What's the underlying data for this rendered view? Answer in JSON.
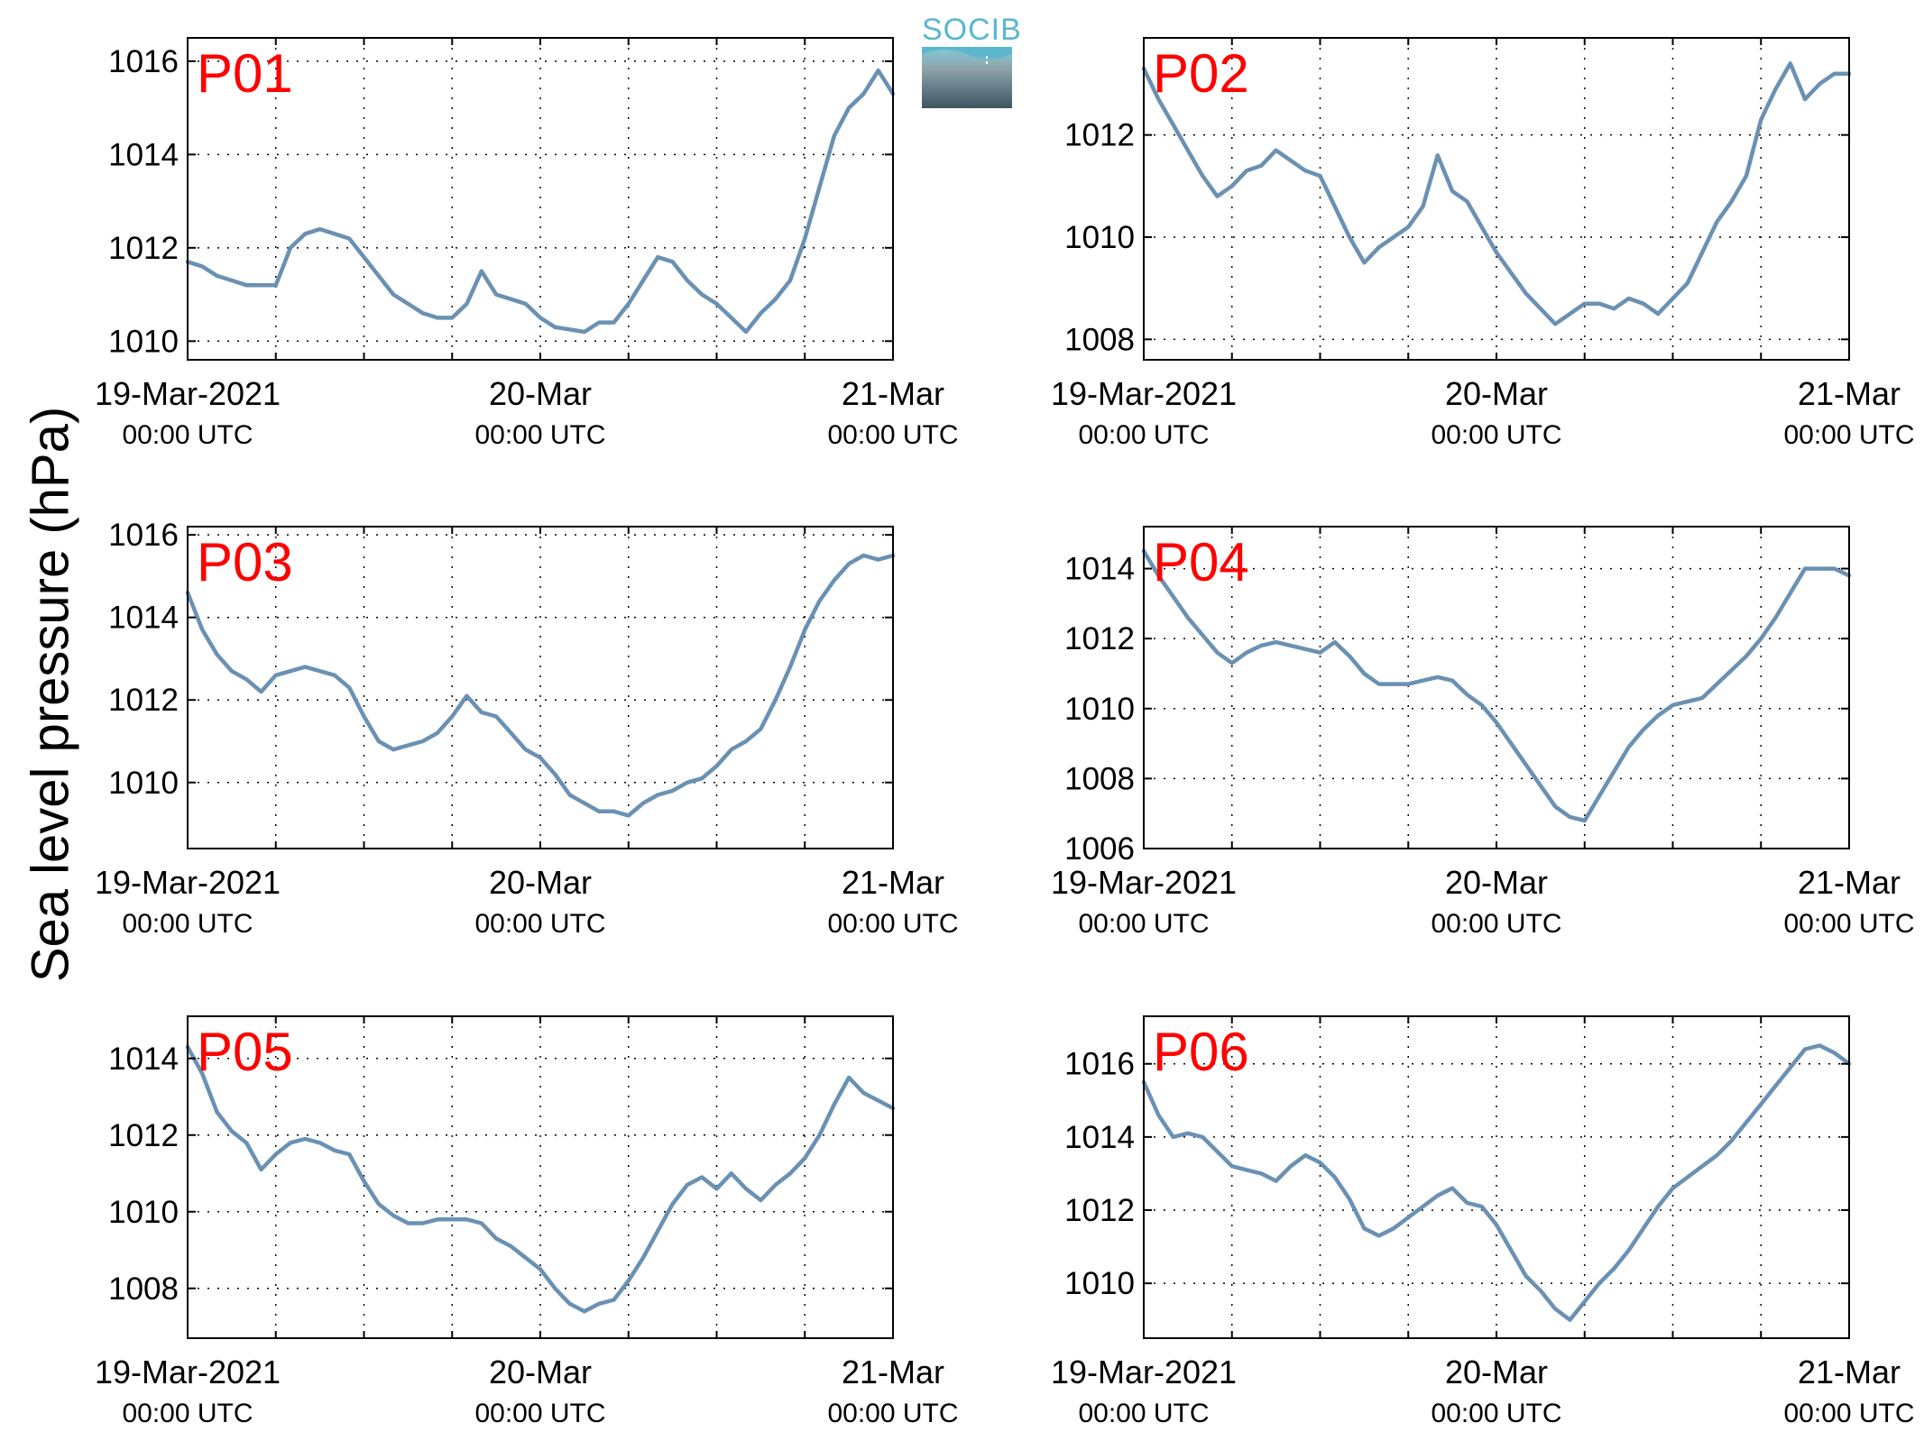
{
  "figure": {
    "ylabel": "Sea level pressure (hPa)",
    "logo_text": "SOCIB",
    "line_color": "#6a91b3",
    "label_color": "#ff0000"
  },
  "chart_data": [
    {
      "type": "line",
      "label": "P01",
      "x_ticks": [
        {
          "hour": 0,
          "lines": [
            "19-Mar-2021",
            "00:00 UTC"
          ]
        },
        {
          "hour": 24,
          "lines": [
            "20-Mar",
            "00:00 UTC"
          ]
        },
        {
          "hour": 48,
          "lines": [
            "21-Mar",
            "00:00 UTC"
          ]
        }
      ],
      "xlim": [
        0,
        48
      ],
      "ylim": [
        1009.6,
        1016.5
      ],
      "yticks": [
        1010,
        1012,
        1014,
        1016
      ],
      "grid": true,
      "series": [
        {
          "x": [
            0,
            1,
            2,
            3,
            4,
            5,
            6,
            7,
            8,
            9,
            10,
            11,
            12,
            13,
            14,
            15,
            16,
            17,
            18,
            19,
            20,
            21,
            22,
            23,
            24,
            25,
            26,
            27,
            28,
            29,
            30,
            31,
            32,
            33,
            34,
            35,
            36,
            37,
            38,
            39,
            40,
            41,
            42,
            43,
            44,
            45,
            46,
            47,
            48
          ],
          "y": [
            1011.7,
            1011.6,
            1011.4,
            1011.3,
            1011.2,
            1011.2,
            1011.2,
            1012.0,
            1012.3,
            1012.4,
            1012.3,
            1012.2,
            1011.8,
            1011.4,
            1011.0,
            1010.8,
            1010.6,
            1010.5,
            1010.5,
            1010.8,
            1011.5,
            1011.0,
            1010.9,
            1010.8,
            1010.5,
            1010.3,
            1010.25,
            1010.2,
            1010.4,
            1010.4,
            1010.8,
            1011.3,
            1011.8,
            1011.7,
            1011.3,
            1011.0,
            1010.8,
            1010.5,
            1010.2,
            1010.6,
            1010.9,
            1011.3,
            1012.2,
            1013.3,
            1014.4,
            1015.0,
            1015.3,
            1015.8,
            1015.3
          ]
        }
      ]
    },
    {
      "type": "line",
      "label": "P02",
      "x_ticks": [
        {
          "hour": 0,
          "lines": [
            "19-Mar-2021",
            "00:00 UTC"
          ]
        },
        {
          "hour": 24,
          "lines": [
            "20-Mar",
            "00:00 UTC"
          ]
        },
        {
          "hour": 48,
          "lines": [
            "21-Mar",
            "00:00 UTC"
          ]
        }
      ],
      "xlim": [
        0,
        48
      ],
      "ylim": [
        1007.6,
        1013.9
      ],
      "yticks": [
        1008,
        1010,
        1012
      ],
      "grid": true,
      "series": [
        {
          "x": [
            0,
            1,
            2,
            3,
            4,
            5,
            6,
            7,
            8,
            9,
            10,
            11,
            12,
            13,
            14,
            15,
            16,
            17,
            18,
            19,
            20,
            21,
            22,
            23,
            24,
            25,
            26,
            27,
            28,
            29,
            30,
            31,
            32,
            33,
            34,
            35,
            36,
            37,
            38,
            39,
            40,
            41,
            42,
            43,
            44,
            45,
            46,
            47,
            48
          ],
          "y": [
            1013.3,
            1012.7,
            1012.2,
            1011.7,
            1011.2,
            1010.8,
            1011.0,
            1011.3,
            1011.4,
            1011.7,
            1011.5,
            1011.3,
            1011.2,
            1010.6,
            1010.0,
            1009.5,
            1009.8,
            1010.0,
            1010.2,
            1010.6,
            1011.6,
            1010.9,
            1010.7,
            1010.2,
            1009.7,
            1009.3,
            1008.9,
            1008.6,
            1008.3,
            1008.5,
            1008.7,
            1008.7,
            1008.6,
            1008.8,
            1008.7,
            1008.5,
            1008.8,
            1009.1,
            1009.7,
            1010.3,
            1010.7,
            1011.2,
            1012.3,
            1012.9,
            1013.4,
            1012.7,
            1013.0,
            1013.2,
            1013.2
          ]
        }
      ]
    },
    {
      "type": "line",
      "label": "P03",
      "x_ticks": [
        {
          "hour": 0,
          "lines": [
            "19-Mar-2021",
            "00:00 UTC"
          ]
        },
        {
          "hour": 24,
          "lines": [
            "20-Mar",
            "00:00 UTC"
          ]
        },
        {
          "hour": 48,
          "lines": [
            "21-Mar",
            "00:00 UTC"
          ]
        }
      ],
      "xlim": [
        0,
        48
      ],
      "ylim": [
        1008.4,
        1016.2
      ],
      "yticks": [
        1010,
        1012,
        1014,
        1016
      ],
      "grid": true,
      "series": [
        {
          "x": [
            0,
            1,
            2,
            3,
            4,
            5,
            6,
            7,
            8,
            9,
            10,
            11,
            12,
            13,
            14,
            15,
            16,
            17,
            18,
            19,
            20,
            21,
            22,
            23,
            24,
            25,
            26,
            27,
            28,
            29,
            30,
            31,
            32,
            33,
            34,
            35,
            36,
            37,
            38,
            39,
            40,
            41,
            42,
            43,
            44,
            45,
            46,
            47,
            48
          ],
          "y": [
            1014.6,
            1013.7,
            1013.1,
            1012.7,
            1012.5,
            1012.2,
            1012.6,
            1012.7,
            1012.8,
            1012.7,
            1012.6,
            1012.3,
            1011.6,
            1011.0,
            1010.8,
            1010.9,
            1011.0,
            1011.2,
            1011.6,
            1012.1,
            1011.7,
            1011.6,
            1011.2,
            1010.8,
            1010.6,
            1010.2,
            1009.7,
            1009.5,
            1009.3,
            1009.3,
            1009.2,
            1009.5,
            1009.7,
            1009.8,
            1010.0,
            1010.1,
            1010.4,
            1010.8,
            1011.0,
            1011.3,
            1012.0,
            1012.8,
            1013.7,
            1014.4,
            1014.9,
            1015.3,
            1015.5,
            1015.4,
            1015.5
          ]
        }
      ]
    },
    {
      "type": "line",
      "label": "P04",
      "x_ticks": [
        {
          "hour": 0,
          "lines": [
            "19-Mar-2021",
            "00:00 UTC"
          ]
        },
        {
          "hour": 24,
          "lines": [
            "20-Mar",
            "00:00 UTC"
          ]
        },
        {
          "hour": 48,
          "lines": [
            "21-Mar",
            "00:00 UTC"
          ]
        }
      ],
      "xlim": [
        0,
        48
      ],
      "ylim": [
        1006,
        1015.2
      ],
      "yticks": [
        1006,
        1008,
        1010,
        1012,
        1014
      ],
      "grid": true,
      "series": [
        {
          "x": [
            0,
            1,
            2,
            3,
            4,
            5,
            6,
            7,
            8,
            9,
            10,
            11,
            12,
            13,
            14,
            15,
            16,
            17,
            18,
            19,
            20,
            21,
            22,
            23,
            24,
            25,
            26,
            27,
            28,
            29,
            30,
            31,
            32,
            33,
            34,
            35,
            36,
            37,
            38,
            39,
            40,
            41,
            42,
            43,
            44,
            45,
            46,
            47,
            48
          ],
          "y": [
            1014.5,
            1013.8,
            1013.2,
            1012.6,
            1012.1,
            1011.6,
            1011.3,
            1011.6,
            1011.8,
            1011.9,
            1011.8,
            1011.7,
            1011.6,
            1011.9,
            1011.5,
            1011.0,
            1010.7,
            1010.7,
            1010.7,
            1010.8,
            1010.9,
            1010.8,
            1010.4,
            1010.1,
            1009.6,
            1009.0,
            1008.4,
            1007.8,
            1007.2,
            1006.9,
            1006.8,
            1007.5,
            1008.2,
            1008.9,
            1009.4,
            1009.8,
            1010.1,
            1010.2,
            1010.3,
            1010.7,
            1011.1,
            1011.5,
            1012.0,
            1012.6,
            1013.3,
            1014.0,
            1014.0,
            1014.0,
            1013.8
          ]
        }
      ]
    },
    {
      "type": "line",
      "label": "P05",
      "x_ticks": [
        {
          "hour": 0,
          "lines": [
            "19-Mar-2021",
            "00:00 UTC"
          ]
        },
        {
          "hour": 24,
          "lines": [
            "20-Mar",
            "00:00 UTC"
          ]
        },
        {
          "hour": 48,
          "lines": [
            "21-Mar",
            "00:00 UTC"
          ]
        }
      ],
      "xlim": [
        0,
        48
      ],
      "ylim": [
        1006.7,
        1015.1
      ],
      "yticks": [
        1008,
        1010,
        1012,
        1014
      ],
      "grid": true,
      "series": [
        {
          "x": [
            0,
            1,
            2,
            3,
            4,
            5,
            6,
            7,
            8,
            9,
            10,
            11,
            12,
            13,
            14,
            15,
            16,
            17,
            18,
            19,
            20,
            21,
            22,
            23,
            24,
            25,
            26,
            27,
            28,
            29,
            30,
            31,
            32,
            33,
            34,
            35,
            36,
            37,
            38,
            39,
            40,
            41,
            42,
            43,
            44,
            45,
            46,
            47,
            48
          ],
          "y": [
            1014.3,
            1013.6,
            1012.6,
            1012.1,
            1011.8,
            1011.1,
            1011.5,
            1011.8,
            1011.9,
            1011.8,
            1011.6,
            1011.5,
            1010.8,
            1010.2,
            1009.9,
            1009.7,
            1009.7,
            1009.8,
            1009.8,
            1009.8,
            1009.7,
            1009.3,
            1009.1,
            1008.8,
            1008.5,
            1008.0,
            1007.6,
            1007.4,
            1007.6,
            1007.7,
            1008.2,
            1008.8,
            1009.5,
            1010.2,
            1010.7,
            1010.9,
            1010.6,
            1011.0,
            1010.6,
            1010.3,
            1010.7,
            1011.0,
            1011.4,
            1012.0,
            1012.8,
            1013.5,
            1013.1,
            1012.9,
            1012.7
          ]
        }
      ]
    },
    {
      "type": "line",
      "label": "P06",
      "x_ticks": [
        {
          "hour": 0,
          "lines": [
            "19-Mar-2021",
            "00:00 UTC"
          ]
        },
        {
          "hour": 24,
          "lines": [
            "20-Mar",
            "00:00 UTC"
          ]
        },
        {
          "hour": 48,
          "lines": [
            "21-Mar",
            "00:00 UTC"
          ]
        }
      ],
      "xlim": [
        0,
        48
      ],
      "ylim": [
        1008.5,
        1017.3
      ],
      "yticks": [
        1010,
        1012,
        1014,
        1016
      ],
      "grid": true,
      "series": [
        {
          "x": [
            0,
            1,
            2,
            3,
            4,
            5,
            6,
            7,
            8,
            9,
            10,
            11,
            12,
            13,
            14,
            15,
            16,
            17,
            18,
            19,
            20,
            21,
            22,
            23,
            24,
            25,
            26,
            27,
            28,
            29,
            30,
            31,
            32,
            33,
            34,
            35,
            36,
            37,
            38,
            39,
            40,
            41,
            42,
            43,
            44,
            45,
            46,
            47,
            48
          ],
          "y": [
            1015.5,
            1014.6,
            1014.0,
            1014.1,
            1014.0,
            1013.6,
            1013.2,
            1013.1,
            1013.0,
            1012.8,
            1013.2,
            1013.5,
            1013.3,
            1012.9,
            1012.3,
            1011.5,
            1011.3,
            1011.5,
            1011.8,
            1012.1,
            1012.4,
            1012.6,
            1012.2,
            1012.1,
            1011.6,
            1010.9,
            1010.2,
            1009.8,
            1009.3,
            1009.0,
            1009.5,
            1010.0,
            1010.4,
            1010.9,
            1011.5,
            1012.1,
            1012.6,
            1012.9,
            1013.2,
            1013.5,
            1013.9,
            1014.4,
            1014.9,
            1015.4,
            1015.9,
            1016.4,
            1016.5,
            1016.3,
            1016.0
          ]
        }
      ]
    }
  ]
}
